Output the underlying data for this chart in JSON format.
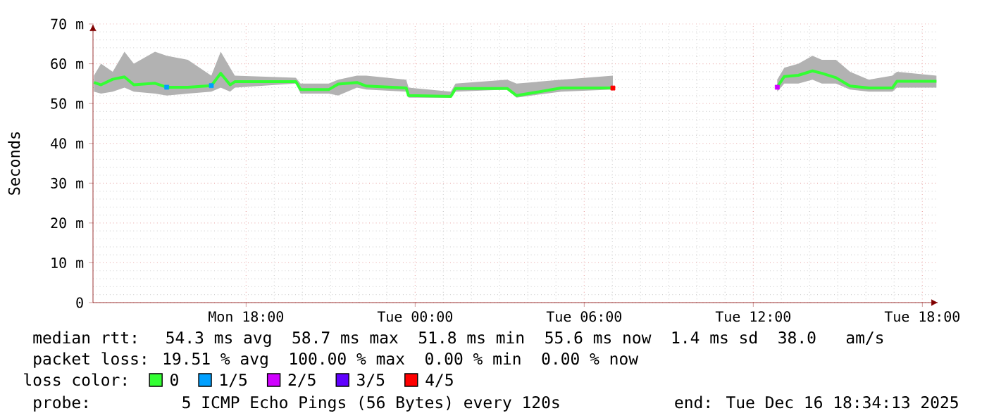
{
  "chart_data": {
    "type": "line",
    "ylabel": "Seconds",
    "legend_title": "loss color:",
    "xlim": [
      "2025-12-15T12:34",
      "2025-12-16T18:34"
    ],
    "ylim": [
      0,
      70
    ],
    "xticks": [
      {
        "value": "2025-12-15T18:00",
        "label": "Mon 18:00"
      },
      {
        "value": "2025-12-16T00:00",
        "label": "Tue 00:00"
      },
      {
        "value": "2025-12-16T06:00",
        "label": "Tue 06:00"
      },
      {
        "value": "2025-12-16T12:00",
        "label": "Tue 12:00"
      },
      {
        "value": "2025-12-16T18:00",
        "label": "Tue 18:00"
      }
    ],
    "yticks": [
      0,
      {
        "value": 10,
        "label": "10 m"
      },
      {
        "value": 20,
        "label": "20 m"
      },
      {
        "value": 30,
        "label": "30 m"
      },
      {
        "value": 40,
        "label": "40 m"
      },
      {
        "value": 50,
        "label": "50 m"
      },
      {
        "value": 60,
        "label": "60 m"
      },
      {
        "value": 70,
        "label": "70 m"
      }
    ],
    "grid": true,
    "legend": "bottom",
    "series": [
      {
        "name": "0",
        "color": "#33ff33",
        "type": "line",
        "x": [
          "2025-12-15T12:36",
          "2025-12-15T12:51",
          "2025-12-15T13:16",
          "2025-12-15T13:41",
          "2025-12-15T14:01",
          "2025-12-15T14:46",
          "2025-12-15T15:11",
          "2025-12-15T15:56",
          "2025-12-15T16:46",
          "2025-12-15T17:06",
          "2025-12-15T17:26",
          "2025-12-15T17:36",
          "2025-12-15T19:46",
          "2025-12-15T19:56",
          "2025-12-15T20:56",
          "2025-12-15T21:16",
          "2025-12-15T21:56",
          "2025-12-15T22:16",
          "2025-12-15T23:41",
          "2025-12-15T23:46",
          "2025-12-16T01:16",
          "2025-12-16T01:26",
          "2025-12-16T03:16",
          "2025-12-16T03:36",
          "2025-12-16T05:11",
          "2025-12-16T07:01",
          "2025-12-16T09:00",
          "2025-12-16T12:51",
          "2025-12-16T13:06",
          "2025-12-16T13:36",
          "2025-12-16T14:06",
          "2025-12-16T14:26",
          "2025-12-16T14:56",
          "2025-12-16T15:26",
          "2025-12-16T16:06",
          "2025-12-16T16:56",
          "2025-12-16T17:06",
          "2025-12-16T18:30"
        ],
        "values": [
          55.3,
          54.7,
          56.1,
          56.7,
          54.7,
          55.1,
          54.1,
          54.1,
          54.5,
          57.6,
          54.7,
          55.5,
          55.5,
          53.5,
          53.5,
          54.9,
          55.3,
          54.4,
          53.9,
          52.0,
          51.8,
          53.8,
          53.8,
          52.0,
          53.9,
          53.9,
          null,
          54.1,
          56.8,
          57.1,
          58.2,
          57.6,
          56.5,
          54.4,
          53.9,
          53.9,
          55.6,
          55.6
        ],
        "lower": [
          53,
          52.5,
          53,
          54,
          53,
          52.5,
          52,
          52.5,
          53,
          54,
          53,
          54,
          55,
          52.5,
          52.5,
          52,
          54,
          53.5,
          53,
          51.5,
          51.5,
          53,
          53.5,
          51.5,
          53,
          53.5,
          null,
          53,
          55,
          55,
          56,
          55,
          55,
          53.5,
          53,
          53,
          54,
          54
        ],
        "upper": [
          57,
          60,
          58,
          63,
          60,
          63,
          62,
          61,
          57,
          63,
          59,
          57,
          56.5,
          55,
          55,
          56,
          57,
          57,
          56,
          54,
          53,
          55,
          56,
          55,
          56,
          57,
          null,
          56,
          59,
          60,
          62,
          61,
          61,
          58,
          56,
          57,
          58,
          57
        ]
      },
      {
        "name": "1/5",
        "color": "#00a0ff",
        "type": "scatter",
        "x": [
          "2025-12-15T15:11",
          "2025-12-15T16:46"
        ],
        "values": [
          54.1,
          54.5
        ]
      },
      {
        "name": "2/5",
        "color": "#d000ff",
        "type": "scatter",
        "x": [
          "2025-12-16T12:51"
        ],
        "values": [
          54.1
        ]
      },
      {
        "name": "3/5",
        "color": "#6000ff",
        "type": "scatter"
      },
      {
        "name": "4/5",
        "color": "#ff0000",
        "type": "scatter",
        "x": [
          "2025-12-16T07:01"
        ],
        "values": [
          53.9
        ]
      }
    ],
    "annotations": [
      "median rtt:  54.3 ms avg  58.7 ms max  51.8 ms min  55.6 ms now  1.4 ms sd  38.0   am/s",
      "packet loss: 19.51 % avg  100.00 % max  0.00 % min  0.00 % now",
      "probe:       5 ICMP Echo Pings (56 Bytes) every 120s",
      "end: Tue Dec 16 18:34:13 2025"
    ]
  }
}
